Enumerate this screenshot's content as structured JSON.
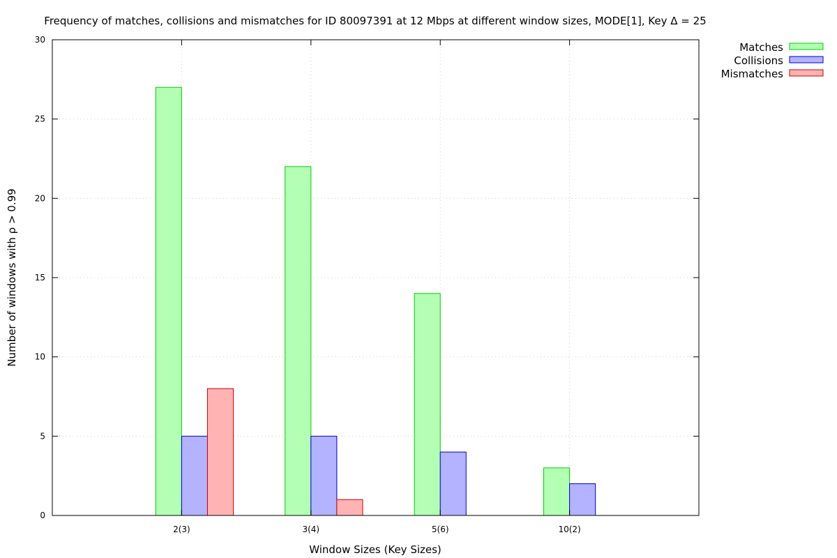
{
  "chart_data": {
    "type": "bar",
    "title": "Frequency of matches, collisions and mismatches for ID 80097391 at 12 Mbps at different window sizes, MODE[1], Key Δ = 25",
    "xlabel": "Window Sizes (Key Sizes)",
    "ylabel": "Number of windows with ρ > 0.99",
    "categories": [
      "2(3)",
      "3(4)",
      "5(6)",
      "10(2)"
    ],
    "ylim": [
      0,
      30
    ],
    "yticks": [
      0,
      5,
      10,
      15,
      20,
      25,
      30
    ],
    "grid": true,
    "legend_position": "top-right, outside plot",
    "series": [
      {
        "name": "Matches",
        "values": [
          27,
          22,
          14,
          3
        ],
        "fill": "#b3ffb3",
        "stroke": "#00cc00"
      },
      {
        "name": "Collisions",
        "values": [
          5,
          5,
          4,
          2
        ],
        "fill": "#b3b3ff",
        "stroke": "#0000cc"
      },
      {
        "name": "Mismatches",
        "values": [
          8,
          1,
          0,
          0
        ],
        "fill": "#ffb3b3",
        "stroke": "#cc0000"
      }
    ]
  }
}
